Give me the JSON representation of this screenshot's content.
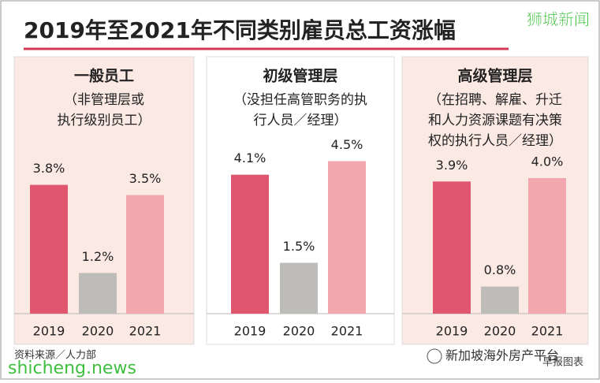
{
  "title": "2019年至2021年不同类别雇员总工资涨幅",
  "source": "资料来源／人力部",
  "watermark_top": "狮城新闻",
  "watermark_bottom": "shicheng.news",
  "watermark_wechat": "新加坡海外房产平台",
  "credit": "早报图表",
  "chart_data": [
    {
      "type": "bar",
      "title": "一般员工",
      "subtitle": [
        "（非管理层或",
        "执行级别员工）"
      ],
      "categories": [
        "2019",
        "2020",
        "2021"
      ],
      "values": [
        3.8,
        1.2,
        3.5
      ],
      "value_labels": [
        "3.8%",
        "1.2%",
        "3.5%"
      ],
      "colors": [
        "#e0566e",
        "#bdbcb9",
        "#f2a6ad"
      ]
    },
    {
      "type": "bar",
      "title": "初级管理层",
      "subtitle": [
        "（没担任高管职务的执",
        "行人员／经理）"
      ],
      "categories": [
        "2019",
        "2020",
        "2021"
      ],
      "values": [
        4.1,
        1.5,
        4.5
      ],
      "value_labels": [
        "4.1%",
        "1.5%",
        "4.5%"
      ],
      "colors": [
        "#e0566e",
        "#bdbcb9",
        "#f2a6ad"
      ]
    },
    {
      "type": "bar",
      "title": "高级管理层",
      "subtitle": [
        "（在招聘、解雇、升迁",
        "和人力资源课题有决策",
        "权的执行人员／经理）"
      ],
      "categories": [
        "2019",
        "2020",
        "2021"
      ],
      "values": [
        3.9,
        0.8,
        4.0
      ],
      "value_labels": [
        "3.9%",
        "0.8%",
        "4.0%"
      ],
      "colors": [
        "#e0566e",
        "#bdbcb9",
        "#f2a6ad"
      ]
    }
  ]
}
